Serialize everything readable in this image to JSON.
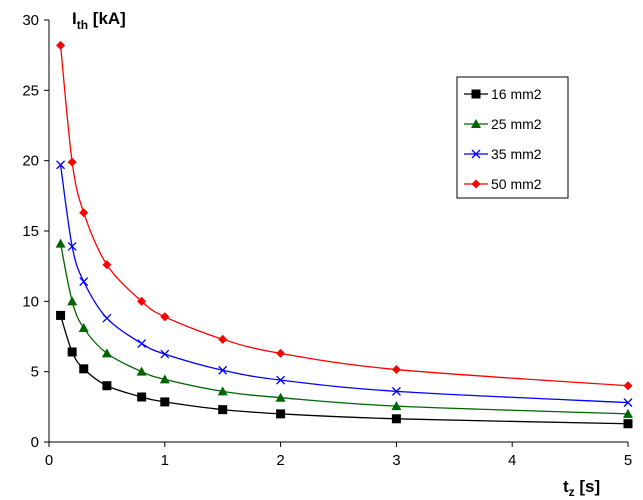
{
  "chart_data": {
    "type": "line",
    "title": "",
    "ylabel": {
      "main": "I",
      "sub": "th",
      "unit": " [kA]"
    },
    "xlabel": {
      "main": "t",
      "sub": "z",
      "unit": " [s]"
    },
    "xlim": [
      0,
      5
    ],
    "ylim": [
      0,
      30
    ],
    "x_ticks": [
      "0",
      "1",
      "2",
      "3",
      "4",
      "5"
    ],
    "y_ticks": [
      "0",
      "5",
      "10",
      "15",
      "20",
      "25",
      "30"
    ],
    "grid": false,
    "legend_position": "top-right",
    "x": [
      0.1,
      0.2,
      0.3,
      0.5,
      0.8,
      1,
      1.5,
      2,
      3,
      5
    ],
    "series": [
      {
        "name": "16 mm2",
        "color": "#000000",
        "marker": "square",
        "values": [
          9.0,
          6.4,
          5.2,
          4.0,
          3.2,
          2.85,
          2.3,
          2.0,
          1.65,
          1.3
        ]
      },
      {
        "name": "25 mm2",
        "color": "#006400",
        "marker": "triangle",
        "values": [
          14.1,
          10.0,
          8.1,
          6.3,
          5.0,
          4.45,
          3.6,
          3.15,
          2.55,
          2.0
        ]
      },
      {
        "name": "35 mm2",
        "color": "#0000ff",
        "marker": "x",
        "values": [
          19.7,
          13.9,
          11.4,
          8.8,
          7.0,
          6.25,
          5.1,
          4.4,
          3.6,
          2.8
        ]
      },
      {
        "name": "50 mm2",
        "color": "#ff0000",
        "marker": "diamond",
        "values": [
          28.2,
          19.9,
          16.3,
          12.6,
          10.0,
          8.9,
          7.3,
          6.3,
          5.15,
          4.0
        ]
      }
    ]
  }
}
